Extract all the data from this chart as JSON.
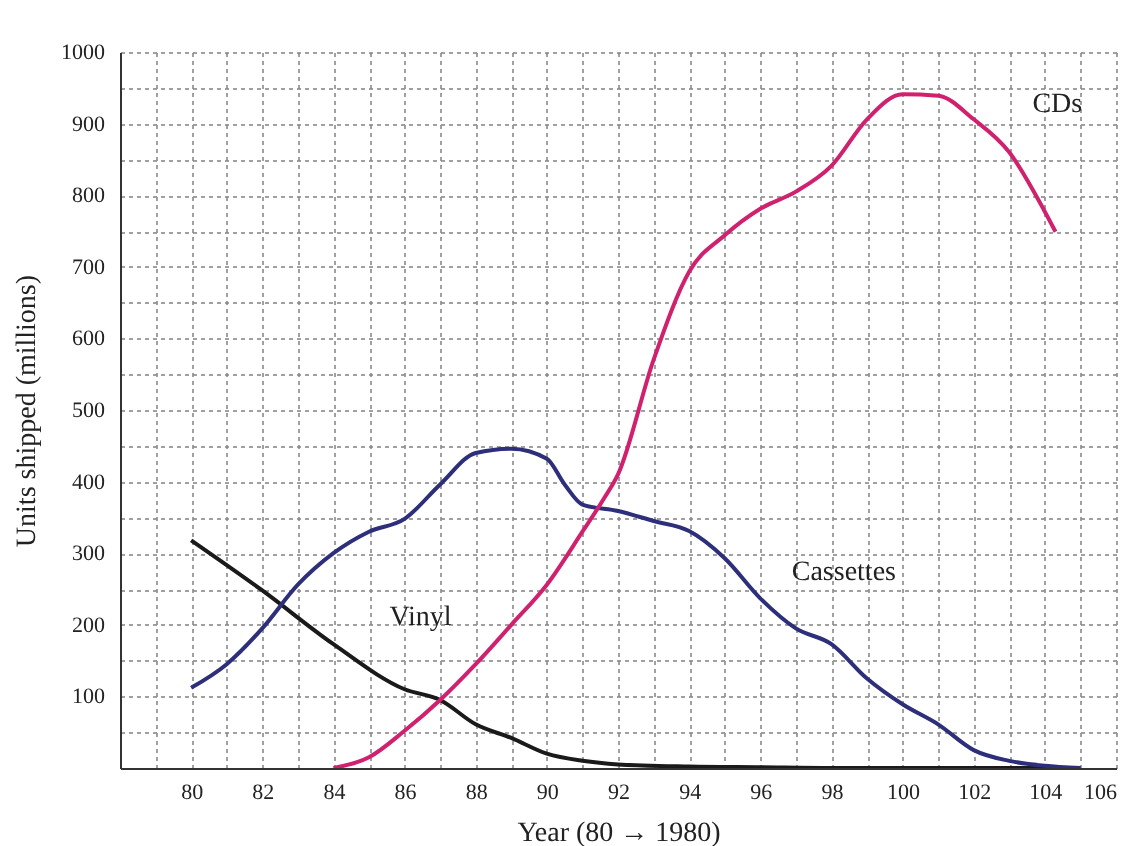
{
  "chart_data": {
    "type": "line",
    "xlabel": "Year (80 → 1980)",
    "ylabel": "Units shipped (millions)",
    "xlim": [
      78,
      106
    ],
    "ylim": [
      0,
      1000
    ],
    "xticks": [
      {
        "value": 79,
        "label": null
      },
      80,
      {
        "value": 81,
        "label": null
      },
      82,
      {
        "value": 83,
        "label": null
      },
      84,
      {
        "value": 85,
        "label": null
      },
      86,
      {
        "value": 87,
        "label": null
      },
      88,
      {
        "value": 89,
        "label": null
      },
      90,
      {
        "value": 91,
        "label": null
      },
      92,
      {
        "value": 93,
        "label": null
      },
      94,
      {
        "value": 95,
        "label": null
      },
      96,
      {
        "value": 97,
        "label": null
      },
      98,
      {
        "value": 99,
        "label": null
      },
      100,
      {
        "value": 101,
        "label": null
      },
      102,
      {
        "value": 103,
        "label": null
      },
      104,
      {
        "value": 105,
        "label": null
      },
      106
    ],
    "yticks": [
      {
        "value": 0,
        "label": null
      },
      {
        "value": 50,
        "label": null
      },
      100,
      {
        "value": 150,
        "label": null
      },
      200,
      {
        "value": 250,
        "label": null
      },
      300,
      {
        "value": 350,
        "label": null
      },
      400,
      {
        "value": 450,
        "label": null
      },
      500,
      {
        "value": 550,
        "label": null
      },
      600,
      {
        "value": 650,
        "label": null
      },
      700,
      {
        "value": 750,
        "label": null
      },
      800,
      {
        "value": 850,
        "label": null
      },
      900,
      {
        "value": 950,
        "label": null
      },
      1000
    ],
    "grid": true,
    "line_style": "solid",
    "marker": "none",
    "series": [
      {
        "name": "Vinyl",
        "color": "#1a1a1a",
        "x": [
          80,
          82,
          84,
          86,
          87,
          88,
          89,
          90,
          91,
          92,
          94,
          96,
          98,
          100,
          102,
          104,
          105
        ],
        "values": [
          318,
          248,
          173,
          110,
          95,
          61,
          42,
          20,
          10,
          5,
          2,
          1,
          0,
          0,
          0,
          0,
          0
        ]
      },
      {
        "name": "Cassettes",
        "color": "#2e2f7a",
        "x": [
          80,
          81,
          82,
          83,
          84,
          85,
          86,
          87,
          88,
          89,
          90,
          90.5,
          91,
          92,
          93,
          94,
          95,
          96,
          97,
          98,
          99,
          100,
          101,
          102,
          103,
          104,
          105
        ],
        "values": [
          112,
          145,
          195,
          256,
          300,
          330,
          348,
          396,
          440,
          446,
          432,
          396,
          368,
          359,
          345,
          331,
          293,
          237,
          195,
          173,
          125,
          89,
          61,
          25,
          10,
          3,
          0
        ]
      },
      {
        "name": "CDs",
        "color": "#d0216e",
        "x": [
          84,
          85,
          86,
          87,
          88,
          89,
          90,
          91,
          91.6,
          92,
          93,
          94,
          95,
          96,
          97,
          98,
          99,
          100,
          101,
          102,
          103,
          104,
          104.3
        ],
        "values": [
          0,
          15,
          52,
          95,
          145,
          200,
          256,
          330,
          376,
          410,
          570,
          693,
          744,
          781,
          805,
          841,
          906,
          941,
          939,
          906,
          860,
          777,
          749
        ]
      }
    ],
    "legend": false
  }
}
